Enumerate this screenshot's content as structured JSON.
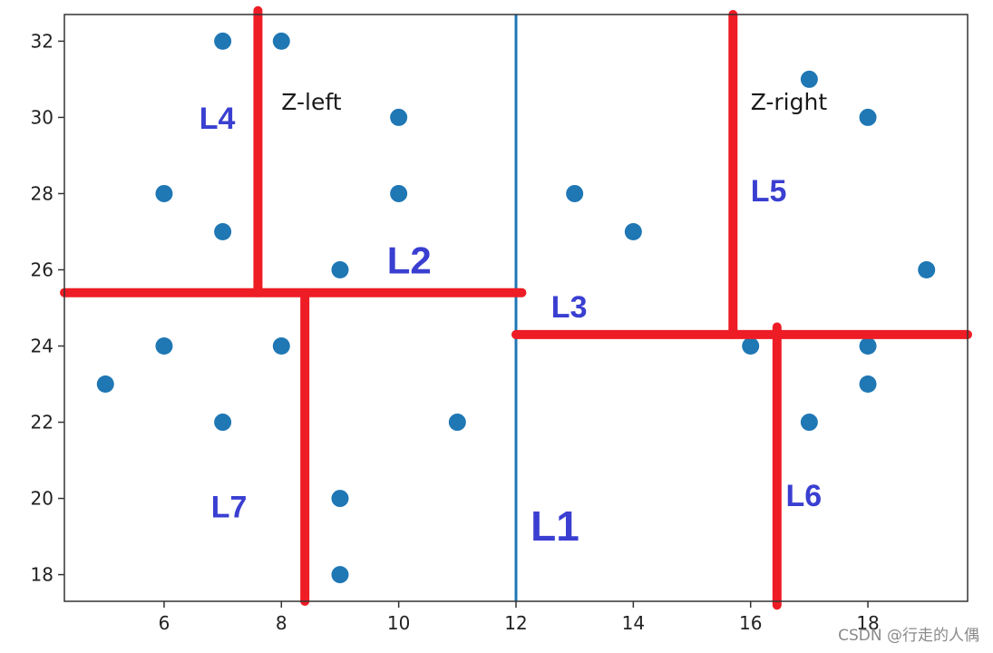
{
  "chart_data": {
    "type": "scatter",
    "title": "",
    "xlabel": "",
    "ylabel": "",
    "xlim": [
      4.3,
      19.7
    ],
    "ylim": [
      17.3,
      32.7
    ],
    "x_ticks": [
      6,
      8,
      10,
      12,
      14,
      16,
      18
    ],
    "y_ticks": [
      18,
      20,
      22,
      24,
      26,
      28,
      30,
      32
    ],
    "grid": false,
    "marker_color": "#1f77b4",
    "split_line_color": "#1f77b4",
    "partition_color": "#ee1c25",
    "label_color": "#3a3fd1",
    "points": [
      {
        "x": 5,
        "y": 23
      },
      {
        "x": 6,
        "y": 28
      },
      {
        "x": 6,
        "y": 24
      },
      {
        "x": 7,
        "y": 32
      },
      {
        "x": 7,
        "y": 27
      },
      {
        "x": 7,
        "y": 22
      },
      {
        "x": 8,
        "y": 32
      },
      {
        "x": 8,
        "y": 24
      },
      {
        "x": 9,
        "y": 26
      },
      {
        "x": 9,
        "y": 20
      },
      {
        "x": 9,
        "y": 18
      },
      {
        "x": 10,
        "y": 30
      },
      {
        "x": 10,
        "y": 28
      },
      {
        "x": 11,
        "y": 22
      },
      {
        "x": 13,
        "y": 28
      },
      {
        "x": 14,
        "y": 27
      },
      {
        "x": 16,
        "y": 24
      },
      {
        "x": 17,
        "y": 31
      },
      {
        "x": 17,
        "y": 22
      },
      {
        "x": 18,
        "y": 30
      },
      {
        "x": 18,
        "y": 24
      },
      {
        "x": 18,
        "y": 23
      },
      {
        "x": 19,
        "y": 26
      }
    ],
    "split_line": {
      "x": 12
    },
    "partition_lines": [
      {
        "x1": 4.3,
        "y1": 25.4,
        "x2": 12.1,
        "y2": 25.4
      },
      {
        "x1": 7.6,
        "y1": 25.4,
        "x2": 7.6,
        "y2": 32.8
      },
      {
        "x1": 8.4,
        "y1": 25.4,
        "x2": 8.4,
        "y2": 17.3
      },
      {
        "x1": 12.0,
        "y1": 24.3,
        "x2": 19.7,
        "y2": 24.3
      },
      {
        "x1": 15.7,
        "y1": 24.3,
        "x2": 15.7,
        "y2": 32.7
      },
      {
        "x1": 16.45,
        "y1": 24.5,
        "x2": 16.45,
        "y2": 17.2
      }
    ],
    "annotations": [
      {
        "text": "Z-left",
        "x": 8.0,
        "y": 30.2
      },
      {
        "text": "Z-right",
        "x": 16.0,
        "y": 30.2
      }
    ],
    "segment_labels": [
      {
        "text": "L1",
        "x": 12.25,
        "y": 18.9,
        "size": 46
      },
      {
        "text": "L2",
        "x": 9.8,
        "y": 25.9,
        "size": 42
      },
      {
        "text": "L3",
        "x": 12.6,
        "y": 24.75,
        "size": 34
      },
      {
        "text": "L4",
        "x": 6.6,
        "y": 29.7,
        "size": 34
      },
      {
        "text": "L5",
        "x": 16.0,
        "y": 27.8,
        "size": 34
      },
      {
        "text": "L6",
        "x": 16.6,
        "y": 19.8,
        "size": 34
      },
      {
        "text": "L7",
        "x": 6.8,
        "y": 19.5,
        "size": 34
      }
    ]
  },
  "watermark": "CSDN @行走的人偶"
}
